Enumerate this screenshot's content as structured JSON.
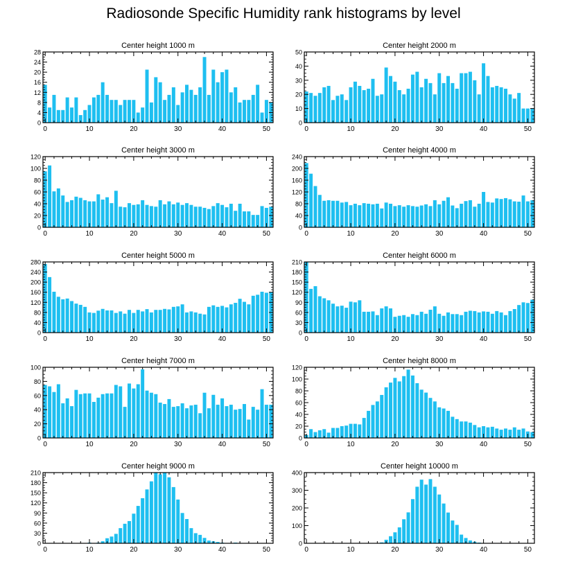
{
  "title": "Radiosonde Specific Humidity rank histograms by level",
  "colors": {
    "bar": "#1ebff0",
    "axis": "#000000",
    "background": "#ffffff"
  },
  "chart_data": [
    {
      "type": "bar",
      "title": "Center height 1000 m",
      "xlabel": "",
      "ylabel": "",
      "xlim": [
        -0.5,
        51.5
      ],
      "ylim": [
        0,
        28
      ],
      "xticks": [
        0,
        10,
        20,
        30,
        40,
        50
      ],
      "yticks": [
        0,
        4,
        8,
        12,
        16,
        20,
        24,
        28
      ],
      "x": [
        0,
        1,
        2,
        3,
        4,
        5,
        6,
        7,
        8,
        9,
        10,
        11,
        12,
        13,
        14,
        15,
        16,
        17,
        18,
        19,
        20,
        21,
        22,
        23,
        24,
        25,
        26,
        27,
        28,
        29,
        30,
        31,
        32,
        33,
        34,
        35,
        36,
        37,
        38,
        39,
        40,
        41,
        42,
        43,
        44,
        45,
        46,
        47,
        48,
        49,
        50,
        51
      ],
      "values": [
        15,
        6,
        11,
        5,
        5,
        10,
        6,
        10,
        3,
        5,
        7,
        10,
        11,
        16,
        11,
        9,
        9,
        7,
        9,
        9,
        9,
        4,
        6,
        21,
        8,
        18,
        16,
        9,
        11,
        14,
        7,
        12,
        15,
        13,
        11,
        14,
        26,
        11,
        21,
        16,
        20,
        21,
        12,
        14,
        8,
        9,
        9,
        11,
        15,
        4,
        9,
        8
      ]
    },
    {
      "type": "bar",
      "title": "Center height 2000 m",
      "xlabel": "",
      "ylabel": "",
      "xlim": [
        -0.5,
        51.5
      ],
      "ylim": [
        0,
        50
      ],
      "xticks": [
        0,
        10,
        20,
        30,
        40,
        50
      ],
      "yticks": [
        0,
        10,
        20,
        30,
        40,
        50
      ],
      "x": [
        0,
        1,
        2,
        3,
        4,
        5,
        6,
        7,
        8,
        9,
        10,
        11,
        12,
        13,
        14,
        15,
        16,
        17,
        18,
        19,
        20,
        21,
        22,
        23,
        24,
        25,
        26,
        27,
        28,
        29,
        30,
        31,
        32,
        33,
        34,
        35,
        36,
        37,
        38,
        39,
        40,
        41,
        42,
        43,
        44,
        45,
        46,
        47,
        48,
        49,
        50,
        51
      ],
      "values": [
        22,
        21,
        19,
        21,
        25,
        26,
        16,
        19,
        20,
        16,
        25,
        29,
        26,
        23,
        24,
        31,
        19,
        20,
        39,
        33,
        29,
        23,
        20,
        24,
        34,
        36,
        25,
        31,
        28,
        20,
        35,
        28,
        33,
        28,
        24,
        35,
        35,
        36,
        30,
        20,
        42,
        33,
        25,
        26,
        25,
        24,
        20,
        17,
        21,
        10,
        10,
        10
      ]
    },
    {
      "type": "bar",
      "title": "Center height 3000 m",
      "xlabel": "",
      "ylabel": "",
      "xlim": [
        -0.5,
        51.5
      ],
      "ylim": [
        0,
        120
      ],
      "xticks": [
        0,
        10,
        20,
        30,
        40,
        50
      ],
      "yticks": [
        0,
        20,
        40,
        60,
        80,
        100,
        120
      ],
      "x": [
        0,
        1,
        2,
        3,
        4,
        5,
        6,
        7,
        8,
        9,
        10,
        11,
        12,
        13,
        14,
        15,
        16,
        17,
        18,
        19,
        20,
        21,
        22,
        23,
        24,
        25,
        26,
        27,
        28,
        29,
        30,
        31,
        32,
        33,
        34,
        35,
        36,
        37,
        38,
        39,
        40,
        41,
        42,
        43,
        44,
        45,
        46,
        47,
        48,
        49,
        50,
        51
      ],
      "values": [
        95,
        105,
        61,
        66,
        54,
        43,
        46,
        52,
        50,
        46,
        44,
        44,
        56,
        47,
        51,
        41,
        62,
        35,
        34,
        41,
        38,
        39,
        46,
        38,
        36,
        35,
        46,
        39,
        44,
        39,
        42,
        38,
        41,
        38,
        35,
        35,
        33,
        31,
        36,
        41,
        38,
        34,
        40,
        28,
        40,
        27,
        27,
        21,
        21,
        36,
        33,
        35
      ]
    },
    {
      "type": "bar",
      "title": "Center height 4000 m",
      "xlabel": "",
      "ylabel": "",
      "xlim": [
        -0.5,
        51.5
      ],
      "ylim": [
        0,
        240
      ],
      "xticks": [
        0,
        10,
        20,
        30,
        40,
        50
      ],
      "yticks": [
        0,
        40,
        80,
        120,
        160,
        200,
        240
      ],
      "x": [
        0,
        1,
        2,
        3,
        4,
        5,
        6,
        7,
        8,
        9,
        10,
        11,
        12,
        13,
        14,
        15,
        16,
        17,
        18,
        19,
        20,
        21,
        22,
        23,
        24,
        25,
        26,
        27,
        28,
        29,
        30,
        31,
        32,
        33,
        34,
        35,
        36,
        37,
        38,
        39,
        40,
        41,
        42,
        43,
        44,
        45,
        46,
        47,
        48,
        49,
        50,
        51
      ],
      "values": [
        218,
        182,
        140,
        110,
        90,
        92,
        90,
        90,
        84,
        86,
        75,
        80,
        75,
        82,
        80,
        78,
        80,
        64,
        84,
        80,
        72,
        75,
        70,
        75,
        72,
        70,
        74,
        78,
        72,
        92,
        78,
        90,
        102,
        74,
        65,
        80,
        89,
        92,
        70,
        80,
        120,
        86,
        84,
        98,
        96,
        99,
        95,
        88,
        87,
        108,
        88,
        92
      ]
    },
    {
      "type": "bar",
      "title": "Center height 5000 m",
      "xlabel": "",
      "ylabel": "",
      "xlim": [
        -0.5,
        51.5
      ],
      "ylim": [
        0,
        280
      ],
      "xticks": [
        0,
        10,
        20,
        30,
        40,
        50
      ],
      "yticks": [
        0,
        40,
        80,
        120,
        160,
        200,
        240,
        280
      ],
      "x": [
        0,
        1,
        2,
        3,
        4,
        5,
        6,
        7,
        8,
        9,
        10,
        11,
        12,
        13,
        14,
        15,
        16,
        17,
        18,
        19,
        20,
        21,
        22,
        23,
        24,
        25,
        26,
        27,
        28,
        29,
        30,
        31,
        32,
        33,
        34,
        35,
        36,
        37,
        38,
        39,
        40,
        41,
        42,
        43,
        44,
        45,
        46,
        47,
        48,
        49,
        50,
        51
      ],
      "values": [
        272,
        220,
        162,
        142,
        132,
        135,
        125,
        115,
        110,
        102,
        80,
        78,
        87,
        94,
        88,
        88,
        78,
        84,
        75,
        90,
        78,
        90,
        84,
        93,
        80,
        90,
        90,
        94,
        92,
        102,
        104,
        112,
        80,
        84,
        80,
        75,
        72,
        102,
        108,
        102,
        106,
        100,
        112,
        118,
        134,
        122,
        112,
        146,
        150,
        162,
        158,
        160
      ]
    },
    {
      "type": "bar",
      "title": "Center height 6000 m",
      "xlabel": "",
      "ylabel": "",
      "xlim": [
        -0.5,
        51.5
      ],
      "ylim": [
        0,
        210
      ],
      "xticks": [
        0,
        10,
        20,
        30,
        40,
        50
      ],
      "yticks": [
        0,
        30,
        60,
        90,
        120,
        150,
        180,
        210
      ],
      "x": [
        0,
        1,
        2,
        3,
        4,
        5,
        6,
        7,
        8,
        9,
        10,
        11,
        12,
        13,
        14,
        15,
        16,
        17,
        18,
        19,
        20,
        21,
        22,
        23,
        24,
        25,
        26,
        27,
        28,
        29,
        30,
        31,
        32,
        33,
        34,
        35,
        36,
        37,
        38,
        39,
        40,
        41,
        42,
        43,
        44,
        45,
        46,
        47,
        48,
        49,
        50,
        51
      ],
      "values": [
        210,
        130,
        138,
        108,
        102,
        96,
        86,
        78,
        80,
        74,
        92,
        90,
        96,
        62,
        62,
        63,
        52,
        72,
        78,
        72,
        47,
        50,
        52,
        47,
        55,
        52,
        62,
        56,
        68,
        78,
        56,
        50,
        60,
        55,
        55,
        52,
        62,
        65,
        64,
        60,
        63,
        62,
        56,
        64,
        60,
        52,
        64,
        70,
        82,
        90,
        88,
        98
      ]
    },
    {
      "type": "bar",
      "title": "Center height 7000 m",
      "xlabel": "",
      "ylabel": "",
      "xlim": [
        -0.5,
        51.5
      ],
      "ylim": [
        0,
        100
      ],
      "xticks": [
        0,
        10,
        20,
        30,
        40,
        50
      ],
      "yticks": [
        0,
        20,
        40,
        60,
        80,
        100
      ],
      "x": [
        0,
        1,
        2,
        3,
        4,
        5,
        6,
        7,
        8,
        9,
        10,
        11,
        12,
        13,
        14,
        15,
        16,
        17,
        18,
        19,
        20,
        21,
        22,
        23,
        24,
        25,
        26,
        27,
        28,
        29,
        30,
        31,
        32,
        33,
        34,
        35,
        36,
        37,
        38,
        39,
        40,
        41,
        42,
        43,
        44,
        45,
        46,
        47,
        48,
        49,
        50,
        51
      ],
      "values": [
        75,
        73,
        65,
        76,
        49,
        56,
        45,
        68,
        62,
        63,
        63,
        51,
        57,
        62,
        63,
        63,
        75,
        73,
        44,
        77,
        70,
        76,
        97,
        67,
        64,
        62,
        50,
        48,
        55,
        44,
        45,
        49,
        42,
        46,
        47,
        35,
        64,
        42,
        61,
        47,
        56,
        45,
        47,
        40,
        41,
        48,
        26,
        44,
        40,
        69,
        47,
        47
      ]
    },
    {
      "type": "bar",
      "title": "Center height 8000 m",
      "xlabel": "",
      "ylabel": "",
      "xlim": [
        -0.5,
        51.5
      ],
      "ylim": [
        0,
        120
      ],
      "xticks": [
        0,
        10,
        20,
        30,
        40,
        50
      ],
      "yticks": [
        0,
        20,
        40,
        60,
        80,
        100,
        120
      ],
      "x": [
        0,
        1,
        2,
        3,
        4,
        5,
        6,
        7,
        8,
        9,
        10,
        11,
        12,
        13,
        14,
        15,
        16,
        17,
        18,
        19,
        20,
        21,
        22,
        23,
        24,
        25,
        26,
        27,
        28,
        29,
        30,
        31,
        32,
        33,
        34,
        35,
        36,
        37,
        38,
        39,
        40,
        41,
        42,
        43,
        44,
        45,
        46,
        47,
        48,
        49,
        50,
        51
      ],
      "values": [
        5,
        15,
        10,
        13,
        15,
        9,
        17,
        17,
        20,
        21,
        24,
        24,
        23,
        34,
        46,
        56,
        62,
        73,
        86,
        94,
        102,
        96,
        105,
        116,
        106,
        93,
        82,
        77,
        68,
        62,
        52,
        50,
        46,
        36,
        32,
        28,
        28,
        26,
        22,
        18,
        20,
        18,
        19,
        16,
        14,
        16,
        14,
        18,
        14,
        16,
        11,
        10
      ]
    },
    {
      "type": "bar",
      "title": "Center height 9000 m",
      "xlabel": "",
      "ylabel": "",
      "xlim": [
        -0.5,
        51.5
      ],
      "ylim": [
        0,
        210
      ],
      "xticks": [
        0,
        10,
        20,
        30,
        40,
        50
      ],
      "yticks": [
        0,
        30,
        60,
        90,
        120,
        150,
        180,
        210
      ],
      "x": [
        0,
        1,
        2,
        3,
        4,
        5,
        6,
        7,
        8,
        9,
        10,
        11,
        12,
        13,
        14,
        15,
        16,
        17,
        18,
        19,
        20,
        21,
        22,
        23,
        24,
        25,
        26,
        27,
        28,
        29,
        30,
        31,
        32,
        33,
        34,
        35,
        36,
        37,
        38,
        39,
        40,
        41,
        42,
        43,
        44,
        45,
        46,
        47,
        48,
        49,
        50,
        51
      ],
      "values": [
        0,
        0,
        0,
        0,
        0,
        0,
        0,
        0,
        0,
        0,
        2,
        1,
        2,
        6,
        15,
        20,
        28,
        45,
        58,
        66,
        88,
        111,
        134,
        160,
        184,
        210,
        205,
        211,
        196,
        167,
        130,
        90,
        72,
        45,
        30,
        25,
        16,
        8,
        6,
        4,
        2,
        1,
        1,
        2,
        1,
        0,
        0,
        0,
        0,
        0,
        0,
        0
      ]
    },
    {
      "type": "bar",
      "title": "Center height 10000 m",
      "xlabel": "",
      "ylabel": "",
      "xlim": [
        -0.5,
        51.5
      ],
      "ylim": [
        0,
        400
      ],
      "xticks": [
        0,
        10,
        20,
        30,
        40,
        50
      ],
      "yticks": [
        0,
        100,
        200,
        300,
        400
      ],
      "x": [
        0,
        1,
        2,
        3,
        4,
        5,
        6,
        7,
        8,
        9,
        10,
        11,
        12,
        13,
        14,
        15,
        16,
        17,
        18,
        19,
        20,
        21,
        22,
        23,
        24,
        25,
        26,
        27,
        28,
        29,
        30,
        31,
        32,
        33,
        34,
        35,
        36,
        37,
        38,
        39,
        40,
        41,
        42,
        43,
        44,
        45,
        46,
        47,
        48,
        49,
        50,
        51
      ],
      "values": [
        0,
        0,
        0,
        0,
        0,
        0,
        0,
        0,
        0,
        0,
        0,
        0,
        0,
        0,
        0,
        0,
        0,
        5,
        20,
        40,
        62,
        90,
        136,
        175,
        250,
        320,
        360,
        332,
        363,
        320,
        276,
        225,
        174,
        129,
        104,
        49,
        30,
        16,
        9,
        4,
        2,
        1,
        1,
        0,
        0,
        0,
        0,
        0,
        0,
        0,
        0,
        0
      ]
    }
  ]
}
